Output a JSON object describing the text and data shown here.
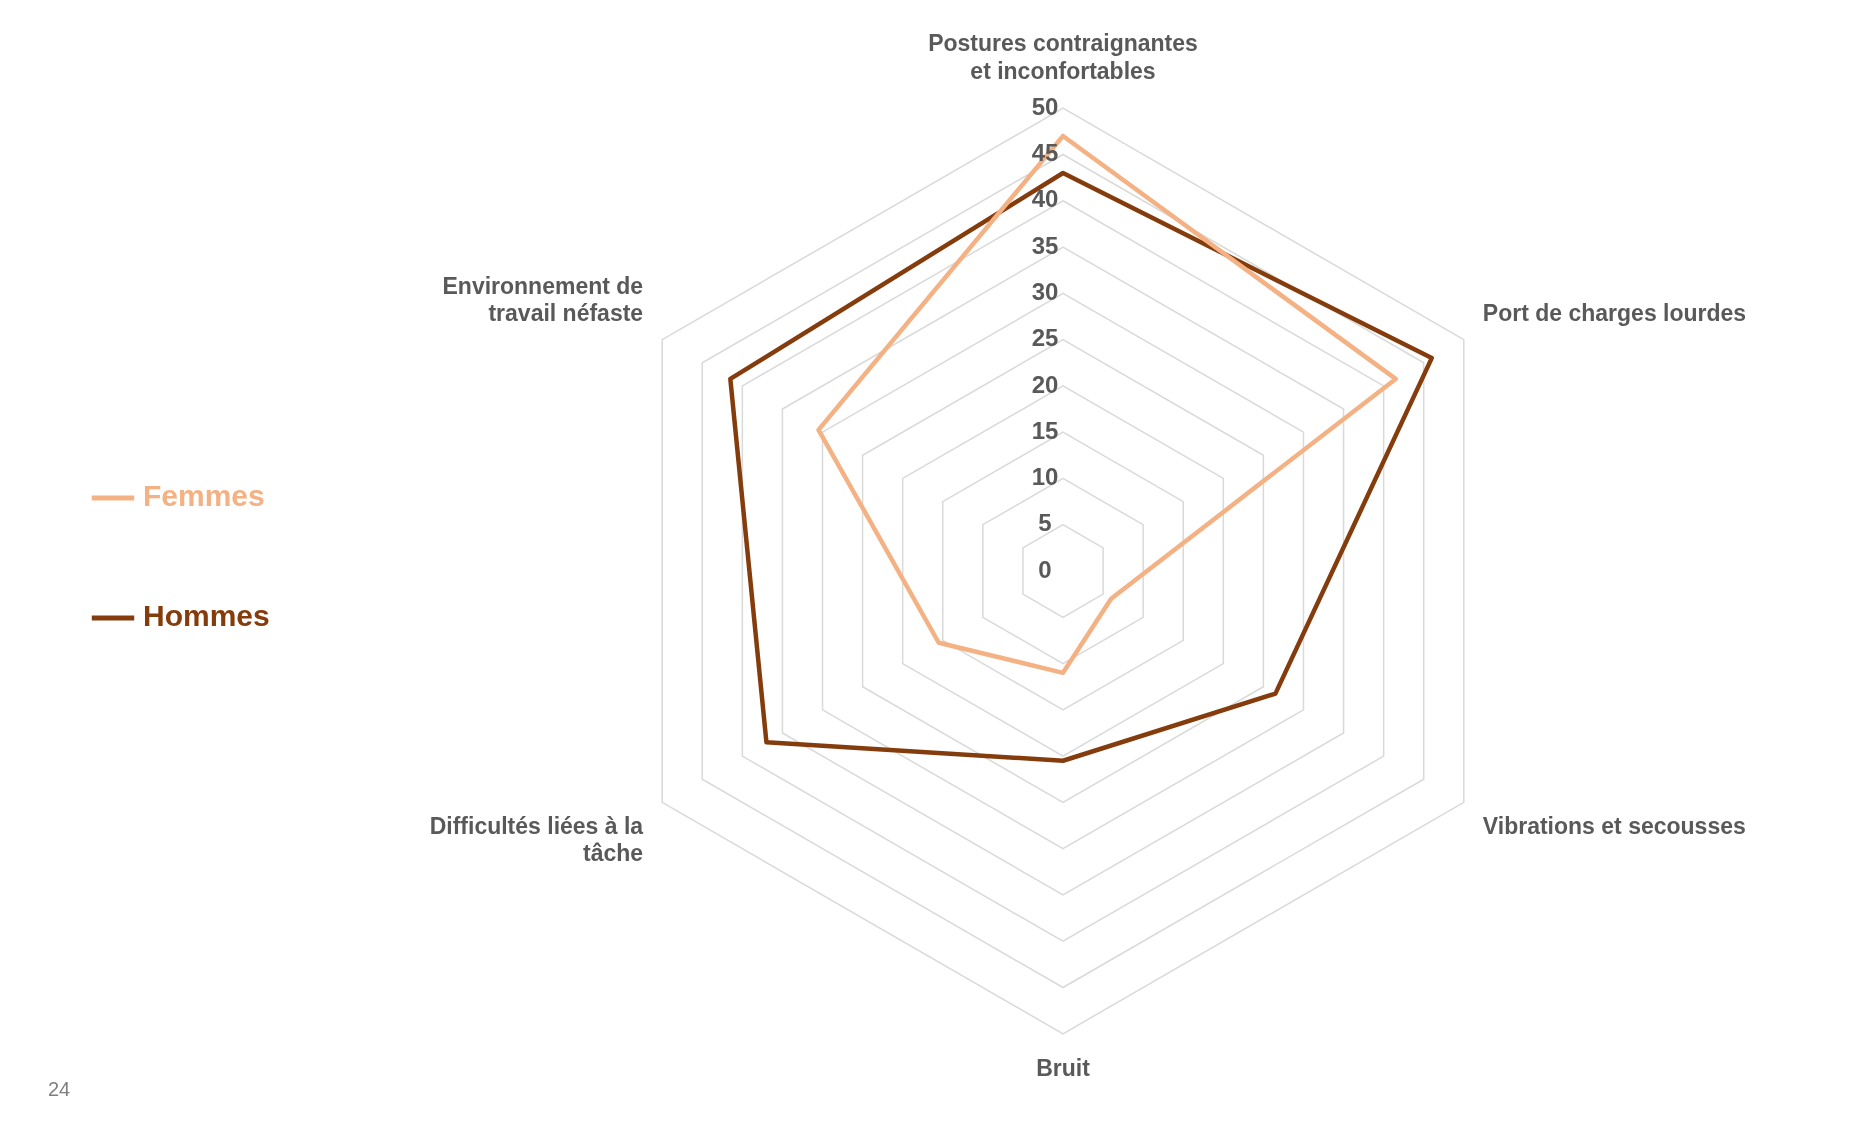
{
  "chart_data": {
    "type": "radar",
    "categories": [
      "Postures contraignantes et inconfortables",
      "Port de charges lourdes",
      "Vibrations et secousses",
      "Bruit",
      "Difficultés liées à la tâche",
      "Environnement de travail néfaste"
    ],
    "series": [
      {
        "name": "Femmes",
        "color": "#f4b183",
        "values": [
          47,
          41.5,
          6,
          11,
          15.5,
          30.5
        ]
      },
      {
        "name": "Hommes",
        "color": "#843c0c",
        "values": [
          43,
          46,
          26.5,
          20.5,
          37,
          41.5
        ]
      }
    ],
    "ylim": [
      0,
      50
    ],
    "yticks": [
      0,
      5,
      10,
      15,
      20,
      25,
      30,
      35,
      40,
      45,
      50
    ],
    "grid": true,
    "legend": "left",
    "marker": "none",
    "annotations": [
      "24"
    ]
  }
}
